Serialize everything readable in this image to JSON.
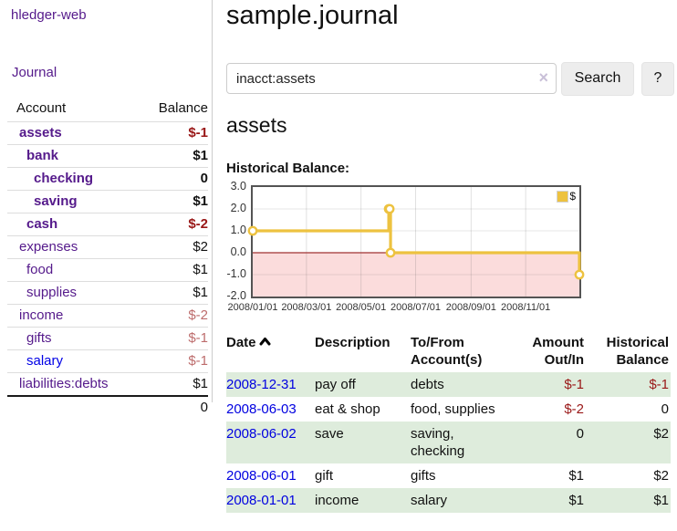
{
  "colors": {
    "link_purple": "#551a8b",
    "link_blue": "#0000e6",
    "negative_strong": "#991717",
    "negative_soft": "#bd6c6c",
    "row_green": "#deecdc",
    "series_gold": "#edc240",
    "chart_negative_region": "#fbdcdc",
    "chart_zero_line": "#a03232",
    "chart_border": "#545454"
  },
  "sidebar": {
    "app_title": "hledger-web",
    "journal_link": "Journal",
    "accounts": {
      "header_account": "Account",
      "header_balance": "Balance",
      "rows": [
        {
          "name": "assets",
          "balance": "$-1",
          "indent": 0,
          "bold": true,
          "balance_color": "neg-strong"
        },
        {
          "name": "bank",
          "balance": "$1",
          "indent": 1,
          "bold": true,
          "balance_color": "pos"
        },
        {
          "name": "checking",
          "balance": "0",
          "indent": 2,
          "bold": true,
          "balance_color": "pos"
        },
        {
          "name": "saving",
          "balance": "$1",
          "indent": 2,
          "bold": true,
          "balance_color": "pos"
        },
        {
          "name": "cash",
          "balance": "$-2",
          "indent": 1,
          "bold": true,
          "balance_color": "neg-strong"
        },
        {
          "name": "expenses",
          "balance": "$2",
          "indent": 0,
          "bold": false,
          "balance_color": "pos"
        },
        {
          "name": "food",
          "balance": "$1",
          "indent": 1,
          "bold": false,
          "balance_color": "pos"
        },
        {
          "name": "supplies",
          "balance": "$1",
          "indent": 1,
          "bold": false,
          "balance_color": "pos"
        },
        {
          "name": "income",
          "balance": "$-2",
          "indent": 0,
          "bold": false,
          "balance_color": "neg-soft"
        },
        {
          "name": "gifts",
          "balance": "$-1",
          "indent": 1,
          "bold": false,
          "balance_color": "neg-soft"
        },
        {
          "name": "salary",
          "balance": "$-1",
          "indent": 1,
          "bold": false,
          "balance_color": "neg-soft",
          "link_color": "blue"
        },
        {
          "name": "liabilities:debts",
          "balance": "$1",
          "indent": 0,
          "bold": false,
          "balance_color": "pos"
        }
      ],
      "total": "0"
    }
  },
  "main": {
    "title": "sample.journal",
    "search": {
      "value": "inacct:assets",
      "clear_icon": "×",
      "search_button": "Search",
      "help_button": "?"
    },
    "account_heading": "assets",
    "section_label": "Historical Balance:"
  },
  "chart_data": {
    "type": "line",
    "title": "Historical Balance:",
    "step": true,
    "x_range": [
      "2008-01-01",
      "2008-12-31"
    ],
    "ylim": [
      -2,
      3
    ],
    "y_ticks": [
      3,
      2,
      1,
      0,
      -1,
      -2
    ],
    "x_ticks": [
      "2008/01/01",
      "2008/03/01",
      "2008/05/01",
      "2008/07/01",
      "2008/09/01",
      "2008/11/01"
    ],
    "legend_position": "top-right",
    "grid": true,
    "negative_region_color": "#fbdcdc",
    "zero_line_color": "#a03232",
    "series": [
      {
        "name": "$",
        "color": "#edc240",
        "points": [
          [
            "2008-01-01",
            1
          ],
          [
            "2008-06-01",
            2
          ],
          [
            "2008-06-02",
            2
          ],
          [
            "2008-06-03",
            0
          ],
          [
            "2008-12-31",
            -1
          ]
        ]
      }
    ]
  },
  "register": {
    "headers": [
      "Date",
      "Description",
      "To/From Account(s)",
      "Amount Out/In",
      "Historical Balance"
    ],
    "sort": {
      "column": "Date",
      "direction": "ascending"
    },
    "rows": [
      {
        "date": "2008-12-31",
        "description": "pay off",
        "accounts": "debts",
        "amount": "$-1",
        "balance": "$-1"
      },
      {
        "date": "2008-06-03",
        "description": "eat & shop",
        "accounts": "food, supplies",
        "amount": "$-2",
        "balance": "0"
      },
      {
        "date": "2008-06-02",
        "description": "save",
        "accounts": "saving, checking",
        "amount": "0",
        "balance": "$2"
      },
      {
        "date": "2008-06-01",
        "description": "gift",
        "accounts": "gifts",
        "amount": "$1",
        "balance": "$2"
      },
      {
        "date": "2008-01-01",
        "description": "income",
        "accounts": "salary",
        "amount": "$1",
        "balance": "$1"
      }
    ]
  }
}
